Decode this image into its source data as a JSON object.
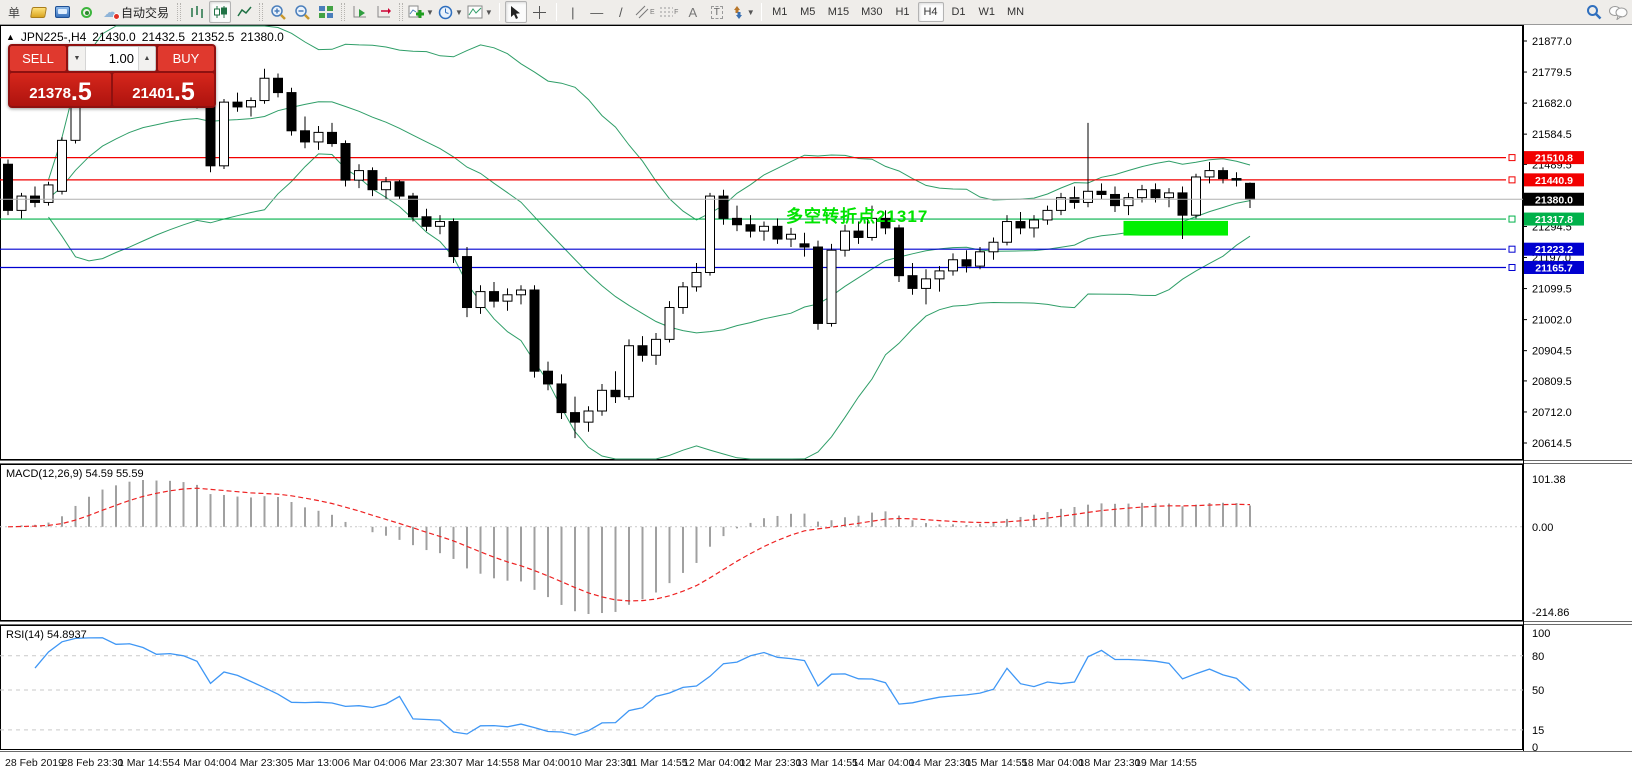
{
  "toolbar": {
    "partial_label": "单",
    "autotrade_label": "自动交易",
    "text_tool_label": "A",
    "label_tool_label": "T",
    "channel_letter": "E",
    "fibo_letter": "F",
    "timeframes": {
      "items": [
        "M1",
        "M5",
        "M15",
        "M30",
        "H1",
        "H4",
        "D1",
        "W1",
        "MN"
      ],
      "active": "H4"
    }
  },
  "header": {
    "collapse_glyph": "▲",
    "symbol": "JPN225-,H4",
    "open": "21430.0",
    "high": "21432.5",
    "low": "21352.5",
    "close": "21380.0"
  },
  "trade_panel": {
    "sell_label": "SELL",
    "buy_label": "BUY",
    "volume": "1.00",
    "sell_price_main": "21378",
    "sell_price_big": ".5",
    "buy_price_main": "21401",
    "buy_price_big": ".5"
  },
  "annotation": {
    "text": "多空转折点21317",
    "color": "#00e400"
  },
  "colors": {
    "band_green": "#2f9e68",
    "hline_red": "#f20000",
    "hline_green": "#00b14a",
    "hline_blue": "#0000d0",
    "current_gray": "#b0b0b0",
    "macd_bar": "#a0a0a0",
    "macd_signal": "#ee2222",
    "rsi_line": "#3f97f5",
    "zone_lime": "#00f000"
  },
  "chart_data": {
    "type": "candlestick",
    "symbol": "JPN225-",
    "timeframe": "H4",
    "candles": [
      [
        21490,
        21505,
        21330,
        21345
      ],
      [
        21345,
        21400,
        21320,
        21390
      ],
      [
        21390,
        21420,
        21355,
        21370
      ],
      [
        21370,
        21435,
        21360,
        21425
      ],
      [
        21405,
        21575,
        21395,
        21565
      ],
      [
        21565,
        21745,
        21555,
        21730
      ],
      [
        21730,
        21800,
        21690,
        21770
      ],
      [
        21770,
        21830,
        21740,
        21780
      ],
      [
        21780,
        21810,
        21730,
        21750
      ],
      [
        21750,
        21790,
        21715,
        21775
      ],
      [
        21775,
        21800,
        21735,
        21755
      ],
      [
        21755,
        21780,
        21700,
        21715
      ],
      [
        21715,
        21745,
        21690,
        21735
      ],
      [
        21735,
        21765,
        21705,
        21720
      ],
      [
        21720,
        21735,
        21665,
        21680
      ],
      [
        21680,
        21695,
        21465,
        21485
      ],
      [
        21485,
        21695,
        21475,
        21685
      ],
      [
        21685,
        21715,
        21655,
        21670
      ],
      [
        21670,
        21700,
        21640,
        21690
      ],
      [
        21690,
        21790,
        21680,
        21760
      ],
      [
        21760,
        21775,
        21700,
        21715
      ],
      [
        21715,
        21730,
        21580,
        21595
      ],
      [
        21595,
        21640,
        21540,
        21560
      ],
      [
        21560,
        21610,
        21535,
        21590
      ],
      [
        21590,
        21620,
        21545,
        21555
      ],
      [
        21555,
        21565,
        21420,
        21440
      ],
      [
        21440,
        21490,
        21415,
        21470
      ],
      [
        21470,
        21480,
        21390,
        21410
      ],
      [
        21410,
        21450,
        21380,
        21435
      ],
      [
        21435,
        21440,
        21380,
        21390
      ],
      [
        21390,
        21400,
        21310,
        21325
      ],
      [
        21325,
        21350,
        21280,
        21295
      ],
      [
        21295,
        21330,
        21270,
        21310
      ],
      [
        21310,
        21320,
        21180,
        21200
      ],
      [
        21200,
        21230,
        21010,
        21040
      ],
      [
        21040,
        21110,
        21020,
        21090
      ],
      [
        21090,
        21120,
        21040,
        21060
      ],
      [
        21060,
        21100,
        21030,
        21080
      ],
      [
        21080,
        21110,
        21050,
        21095
      ],
      [
        21095,
        21110,
        20820,
        20840
      ],
      [
        20840,
        20870,
        20780,
        20800
      ],
      [
        20800,
        20830,
        20690,
        20710
      ],
      [
        20710,
        20760,
        20630,
        20680
      ],
      [
        20680,
        20730,
        20650,
        20715
      ],
      [
        20715,
        20800,
        20700,
        20780
      ],
      [
        20780,
        20840,
        20740,
        20760
      ],
      [
        20760,
        20940,
        20750,
        20920
      ],
      [
        20920,
        20950,
        20870,
        20890
      ],
      [
        20890,
        20960,
        20860,
        20940
      ],
      [
        20940,
        21060,
        20930,
        21040
      ],
      [
        21040,
        21120,
        21020,
        21105
      ],
      [
        21105,
        21180,
        21090,
        21150
      ],
      [
        21150,
        21400,
        21140,
        21390
      ],
      [
        21390,
        21410,
        21300,
        21320
      ],
      [
        21320,
        21360,
        21280,
        21300
      ],
      [
        21300,
        21330,
        21260,
        21280
      ],
      [
        21280,
        21310,
        21250,
        21295
      ],
      [
        21295,
        21320,
        21240,
        21255
      ],
      [
        21255,
        21290,
        21230,
        21270
      ],
      [
        21240,
        21275,
        21200,
        21230
      ],
      [
        21230,
        21250,
        20970,
        20990
      ],
      [
        20990,
        21240,
        20980,
        21220
      ],
      [
        21220,
        21300,
        21200,
        21280
      ],
      [
        21280,
        21310,
        21240,
        21260
      ],
      [
        21260,
        21360,
        21250,
        21320
      ],
      [
        21320,
        21345,
        21270,
        21290
      ],
      [
        21290,
        21300,
        21120,
        21140
      ],
      [
        21140,
        21180,
        21080,
        21100
      ],
      [
        21100,
        21160,
        21050,
        21130
      ],
      [
        21130,
        21170,
        21090,
        21155
      ],
      [
        21155,
        21210,
        21140,
        21190
      ],
      [
        21190,
        21220,
        21150,
        21170
      ],
      [
        21170,
        21230,
        21160,
        21215
      ],
      [
        21215,
        21260,
        21190,
        21245
      ],
      [
        21245,
        21330,
        21235,
        21310
      ],
      [
        21310,
        21340,
        21270,
        21290
      ],
      [
        21290,
        21330,
        21260,
        21315
      ],
      [
        21315,
        21360,
        21300,
        21345
      ],
      [
        21345,
        21400,
        21330,
        21385
      ],
      [
        21385,
        21420,
        21350,
        21370
      ],
      [
        21370,
        21620,
        21355,
        21405
      ],
      [
        21405,
        21430,
        21380,
        21395
      ],
      [
        21395,
        21420,
        21340,
        21360
      ],
      [
        21360,
        21400,
        21330,
        21385
      ],
      [
        21385,
        21425,
        21370,
        21410
      ],
      [
        21410,
        21430,
        21370,
        21385
      ],
      [
        21385,
        21415,
        21355,
        21400
      ],
      [
        21400,
        21420,
        21255,
        21330
      ],
      [
        21330,
        21460,
        21320,
        21450
      ],
      [
        21450,
        21497,
        21430,
        21470
      ],
      [
        21470,
        21480,
        21430,
        21445
      ],
      [
        21445,
        21465,
        21420,
        21440
      ],
      [
        21430,
        21432.5,
        21352.5,
        21380
      ]
    ],
    "price_axis_ticks": [
      {
        "value": 21877.0,
        "label": "21877.0"
      },
      {
        "value": 21779.5,
        "label": "21779.5"
      },
      {
        "value": 21682.0,
        "label": "21682.0"
      },
      {
        "value": 21584.5,
        "label": "21584.5"
      },
      {
        "value": 21489.5,
        "label": "21489.5"
      },
      {
        "value": 21294.5,
        "label": "21294.5"
      },
      {
        "value": 21197.0,
        "label": "21197.0"
      },
      {
        "value": 21099.5,
        "label": "21099.5"
      },
      {
        "value": 21002.0,
        "label": "21002.0"
      },
      {
        "value": 20904.5,
        "label": "20904.5"
      },
      {
        "value": 20809.5,
        "label": "20809.5"
      },
      {
        "value": 20712.0,
        "label": "20712.0"
      },
      {
        "value": 20614.5,
        "label": "20614.5"
      }
    ],
    "hlines": [
      {
        "price": 21510.8,
        "tag": "21510.8",
        "color": "#f20000"
      },
      {
        "price": 21440.9,
        "tag": "21440.9",
        "color": "#f20000"
      },
      {
        "price": 21317.8,
        "tag": "21317.8",
        "color": "#00b14a"
      },
      {
        "price": 21223.2,
        "tag": "21223.2",
        "color": "#0000d0"
      },
      {
        "price": 21165.7,
        "tag": "21165.7",
        "color": "#0000d0"
      }
    ],
    "current_price": {
      "value": 21380.0,
      "tag": "21380.0"
    },
    "highlight_zone": {
      "bar_start": 83,
      "bar_end": 90,
      "price_top": 21312,
      "price_bottom": 21266
    },
    "indicators": {
      "bollinger": {
        "period": 20,
        "deviation": 2
      },
      "macd": {
        "label": "MACD(12,26,9) 54.59 55.59",
        "fast": 12,
        "slow": 26,
        "signal": 9,
        "value": "54.59",
        "signal_value": "55.59",
        "axis_max": "101.38",
        "axis_zero": "0.00",
        "axis_min": "-214.86"
      },
      "rsi": {
        "label": "RSI(14) 54.8937",
        "period": 14,
        "value": "54.8937",
        "axis_labels": [
          {
            "value": 100,
            "label": "100"
          },
          {
            "value": 80,
            "label": "80"
          },
          {
            "value": 50,
            "label": "50"
          },
          {
            "value": 15,
            "label": "15"
          },
          {
            "value": 0,
            "label": "0"
          }
        ],
        "levels": [
          80,
          50,
          15
        ]
      }
    },
    "time_axis": [
      "28 Feb 2019",
      "28 Feb 23:30",
      "1 Mar 14:55",
      "4 Mar 04:00",
      "4 Mar 23:30",
      "5 Mar 13:00",
      "6 Mar 04:00",
      "6 Mar 23:30",
      "7 Mar 14:55",
      "8 Mar 04:00",
      "10 Mar 23:30",
      "11 Mar 14:55",
      "12 Mar 04:00",
      "12 Mar 23:30",
      "13 Mar 14:55",
      "14 Mar 04:00",
      "14 Mar 23:30",
      "15 Mar 14:55",
      "18 Mar 04:00",
      "18 Mar 23:30",
      "19 Mar 14:55"
    ]
  }
}
